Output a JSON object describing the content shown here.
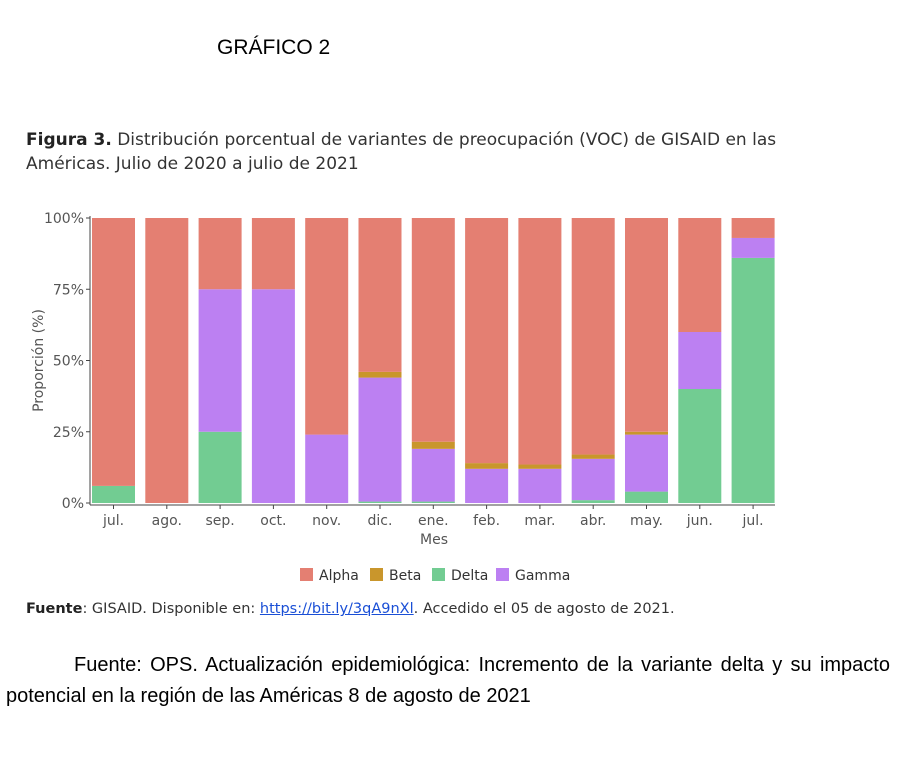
{
  "heading": "GRÁFICO 2",
  "figure": {
    "label": "Figura 3.",
    "title": "Distribución porcentual de variantes de preocupación (VOC) de GISAID en las Américas. Julio de 2020 a julio de 2021"
  },
  "source": {
    "label": "Fuente",
    "text": ": GISAID. Disponible en: ",
    "link": "https://bit.ly/3qA9nXl",
    "suffix": ". Accedido el 05 de agosto de 2021."
  },
  "caption": "Fuente: OPS.  Actualización epidemiológica: Incremento de la variante delta y su impacto potencial en la región de las Américas 8 de agosto de 2021",
  "chart_data": {
    "type": "bar",
    "stacked": true,
    "xlabel": "Mes",
    "ylabel": "Proporción (%)",
    "ylim": [
      0,
      100
    ],
    "yticks": [
      "0%",
      "25%",
      "50%",
      "75%",
      "100%"
    ],
    "categories": [
      "jul.",
      "ago.",
      "sep.",
      "oct.",
      "nov.",
      "dic.",
      "ene.",
      "feb.",
      "mar.",
      "abr.",
      "may.",
      "jun.",
      "jul."
    ],
    "series": [
      {
        "name": "Delta",
        "color": "#72cc92",
        "values": [
          6,
          0,
          25,
          0,
          0,
          0.5,
          0.5,
          0,
          0,
          1,
          4,
          40,
          86
        ]
      },
      {
        "name": "Gamma",
        "color": "#bc80f2",
        "values": [
          0,
          0,
          50,
          75,
          24,
          43.5,
          18.5,
          12,
          12,
          14.5,
          20,
          20,
          7
        ]
      },
      {
        "name": "Beta",
        "color": "#c9962c",
        "values": [
          0,
          0,
          0,
          0,
          0,
          2,
          2.5,
          2,
          1.5,
          1.5,
          1,
          0,
          0
        ]
      },
      {
        "name": "Alpha",
        "color": "#e47f72",
        "values": [
          94,
          100,
          25,
          25,
          76,
          54,
          78.5,
          86,
          86.5,
          83,
          75,
          40,
          7
        ]
      }
    ],
    "legend": {
      "position": "bottom",
      "order": [
        "Alpha",
        "Beta",
        "Delta",
        "Gamma"
      ]
    },
    "grid": false
  }
}
